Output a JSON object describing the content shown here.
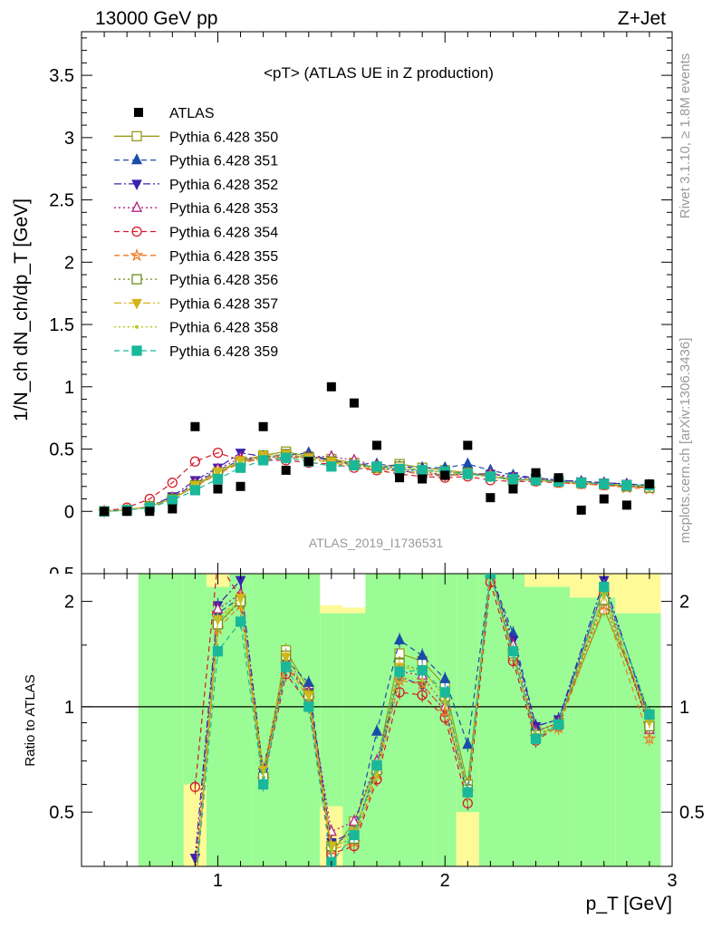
{
  "header": {
    "left": "13000 GeV pp",
    "right": "Z+Jet"
  },
  "side_labels": {
    "rivet": "Rivet 3.1.10, ≥ 1.8M events",
    "mcplots": "mcplots.cern.ch [arXiv:1306.3436]"
  },
  "chart_data": [
    {
      "type": "scatter",
      "title": "<pT> (ATLAS UE in Z production)",
      "analysis_label": "ATLAS_2019_I1736531",
      "ylabel": "1/N_ch dN_ch/dp_T [GeV]",
      "xlim": [
        0.4,
        3.0
      ],
      "ylim": [
        -0.5,
        3.85
      ],
      "yticks": [
        0,
        0.5,
        1,
        1.5,
        2,
        2.5,
        3,
        3.5
      ],
      "ytick_labels": [
        "0",
        "0.5",
        "1",
        "1.5",
        "2",
        "2.5",
        "3",
        "3.5"
      ],
      "legend_position": "top-left",
      "x": [
        0.5,
        0.6,
        0.7,
        0.8,
        0.9,
        1.0,
        1.1,
        1.2,
        1.3,
        1.4,
        1.5,
        1.6,
        1.7,
        1.8,
        1.9,
        2.0,
        2.1,
        2.2,
        2.3,
        2.4,
        2.5,
        2.6,
        2.7,
        2.8,
        2.9
      ],
      "data": {
        "name": "ATLAS",
        "color": "#000000",
        "values": [
          0.0,
          0.0,
          0.0,
          0.02,
          0.68,
          0.18,
          0.2,
          0.68,
          0.33,
          0.4,
          1.0,
          0.87,
          0.53,
          0.27,
          0.26,
          0.29,
          0.53,
          0.11,
          0.18,
          0.31,
          0.27,
          0.01,
          0.1,
          0.05,
          0.22
        ]
      },
      "series": [
        {
          "name": "Pythia 6.428 350",
          "color": "#9a9a1c",
          "marker": "open-square",
          "dash": "solid",
          "values": [
            0.0,
            0.01,
            0.04,
            0.1,
            0.2,
            0.31,
            0.4,
            0.45,
            0.48,
            0.44,
            0.42,
            0.39,
            0.35,
            0.38,
            0.35,
            0.33,
            0.31,
            0.28,
            0.25,
            0.26,
            0.24,
            0.23,
            0.22,
            0.2,
            0.2
          ]
        },
        {
          "name": "Pythia 6.428 351",
          "color": "#1a4da8",
          "marker": "filled-triangle-up",
          "dash": "dash",
          "values": [
            0.0,
            0.01,
            0.04,
            0.11,
            0.22,
            0.33,
            0.41,
            0.44,
            0.45,
            0.47,
            0.4,
            0.38,
            0.38,
            0.36,
            0.35,
            0.35,
            0.38,
            0.33,
            0.29,
            0.27,
            0.25,
            0.24,
            0.23,
            0.22,
            0.21
          ]
        },
        {
          "name": "Pythia 6.428 352",
          "color": "#3a22b0",
          "marker": "filled-triangle-down",
          "dash": "dashdot",
          "values": [
            0.0,
            0.01,
            0.04,
            0.12,
            0.25,
            0.35,
            0.47,
            0.44,
            0.43,
            0.44,
            0.41,
            0.38,
            0.35,
            0.33,
            0.3,
            0.29,
            0.3,
            0.3,
            0.28,
            0.27,
            0.25,
            0.24,
            0.23,
            0.22,
            0.2
          ]
        },
        {
          "name": "Pythia 6.428 353",
          "color": "#b02080",
          "marker": "open-triangle-up",
          "dash": "dot",
          "values": [
            0.0,
            0.01,
            0.04,
            0.11,
            0.23,
            0.34,
            0.43,
            0.43,
            0.44,
            0.44,
            0.44,
            0.41,
            0.37,
            0.34,
            0.32,
            0.29,
            0.3,
            0.3,
            0.27,
            0.26,
            0.24,
            0.23,
            0.22,
            0.21,
            0.19
          ]
        },
        {
          "name": "Pythia 6.428 354",
          "color": "#d41a2a",
          "marker": "open-circle",
          "dash": "dash",
          "values": [
            0.0,
            0.03,
            0.1,
            0.23,
            0.4,
            0.47,
            0.41,
            0.41,
            0.41,
            0.39,
            0.38,
            0.35,
            0.33,
            0.3,
            0.28,
            0.27,
            0.28,
            0.25,
            0.24,
            0.24,
            0.23,
            0.22,
            0.21,
            0.2,
            0.19
          ]
        },
        {
          "name": "Pythia 6.428 355",
          "color": "#ee7a22",
          "marker": "open-star",
          "dash": "dash",
          "values": [
            0.0,
            0.01,
            0.04,
            0.1,
            0.2,
            0.3,
            0.39,
            0.42,
            0.44,
            0.42,
            0.39,
            0.36,
            0.34,
            0.32,
            0.3,
            0.28,
            0.3,
            0.29,
            0.26,
            0.25,
            0.23,
            0.22,
            0.21,
            0.19,
            0.18
          ]
        },
        {
          "name": "Pythia 6.428 356",
          "color": "#6e8a1c",
          "marker": "open-square",
          "dash": "dot",
          "values": [
            0.0,
            0.01,
            0.04,
            0.1,
            0.21,
            0.31,
            0.4,
            0.43,
            0.46,
            0.43,
            0.4,
            0.37,
            0.35,
            0.36,
            0.33,
            0.31,
            0.31,
            0.28,
            0.25,
            0.25,
            0.24,
            0.23,
            0.22,
            0.2,
            0.19
          ]
        },
        {
          "name": "Pythia 6.428 357",
          "color": "#d4b41a",
          "marker": "tri-down",
          "dash": "dashdot",
          "values": [
            0.0,
            0.01,
            0.04,
            0.1,
            0.21,
            0.32,
            0.41,
            0.45,
            0.46,
            0.43,
            0.4,
            0.38,
            0.35,
            0.35,
            0.33,
            0.31,
            0.3,
            0.28,
            0.26,
            0.25,
            0.24,
            0.23,
            0.22,
            0.21,
            0.2
          ]
        },
        {
          "name": "Pythia 6.428 358",
          "color": "#b8c81c",
          "marker": "dot",
          "dash": "dot",
          "values": [
            0.0,
            0.01,
            0.04,
            0.1,
            0.21,
            0.32,
            0.4,
            0.43,
            0.44,
            0.42,
            0.39,
            0.37,
            0.34,
            0.33,
            0.31,
            0.3,
            0.29,
            0.28,
            0.26,
            0.25,
            0.24,
            0.23,
            0.22,
            0.21,
            0.2
          ]
        },
        {
          "name": "Pythia 6.428 359",
          "color": "#1ab89a",
          "marker": "filled-square",
          "dash": "dash",
          "values": [
            0.0,
            0.01,
            0.03,
            0.09,
            0.17,
            0.26,
            0.35,
            0.41,
            0.43,
            0.4,
            0.36,
            0.37,
            0.36,
            0.34,
            0.33,
            0.32,
            0.3,
            0.28,
            0.26,
            0.25,
            0.24,
            0.23,
            0.22,
            0.21,
            0.21
          ]
        }
      ]
    },
    {
      "type": "line",
      "ylabel": "Ratio to ATLAS",
      "xlabel": "p_T [GeV]",
      "xlim": [
        0.4,
        3.0
      ],
      "ylim": [
        0.35,
        2.4
      ],
      "y_scale": "log",
      "xticks": [
        1,
        2,
        3
      ],
      "xtick_labels": [
        "1",
        "2",
        "3"
      ],
      "yticks": [
        0.5,
        1,
        2
      ],
      "ytick_labels": [
        "0.5",
        "1",
        "2"
      ],
      "reference_line": 1,
      "band_colors": {
        "inner": "#9bfc95",
        "outer": "#fffa98"
      },
      "band_bins": [
        {
          "x0": 0.65,
          "x1": 0.85,
          "lo1": 0.35,
          "hi1": 2.4,
          "lo2": 0.35,
          "hi2": 2.4
        },
        {
          "x0": 0.85,
          "x1": 0.95,
          "lo1": 0.6,
          "hi1": 2.4,
          "lo2": 0.35,
          "hi2": 2.4
        },
        {
          "x0": 0.95,
          "x1": 1.05,
          "lo1": 0.35,
          "hi1": 2.2,
          "lo2": 0.35,
          "hi2": 2.4
        },
        {
          "x0": 1.05,
          "x1": 1.15,
          "lo1": 0.35,
          "hi1": 2.4,
          "lo2": 0.35,
          "hi2": 2.4
        },
        {
          "x0": 1.15,
          "x1": 1.45,
          "lo1": 0.35,
          "hi1": 2.4,
          "lo2": 0.35,
          "hi2": 2.4
        },
        {
          "x0": 1.45,
          "x1": 1.55,
          "lo1": 0.52,
          "hi1": 1.85,
          "lo2": 0.35,
          "hi2": 1.95
        },
        {
          "x0": 1.55,
          "x1": 1.65,
          "lo1": 0.35,
          "hi1": 1.85,
          "lo2": 0.35,
          "hi2": 1.92
        },
        {
          "x0": 1.65,
          "x1": 1.95,
          "lo1": 0.35,
          "hi1": 2.4,
          "lo2": 0.35,
          "hi2": 2.4
        },
        {
          "x0": 1.95,
          "x1": 2.05,
          "lo1": 0.35,
          "hi1": 2.4,
          "lo2": 0.35,
          "hi2": 2.4
        },
        {
          "x0": 2.05,
          "x1": 2.15,
          "lo1": 0.5,
          "hi1": 2.4,
          "lo2": 0.35,
          "hi2": 2.4
        },
        {
          "x0": 2.15,
          "x1": 2.35,
          "lo1": 0.35,
          "hi1": 2.4,
          "lo2": 0.35,
          "hi2": 2.4
        },
        {
          "x0": 2.35,
          "x1": 2.55,
          "lo1": 0.35,
          "hi1": 2.2,
          "lo2": 0.35,
          "hi2": 2.4
        },
        {
          "x0": 2.55,
          "x1": 2.75,
          "lo1": 0.35,
          "hi1": 2.05,
          "lo2": 0.35,
          "hi2": 2.4
        },
        {
          "x0": 2.75,
          "x1": 2.95,
          "lo1": 0.35,
          "hi1": 1.85,
          "lo2": 0.35,
          "hi2": 2.4
        }
      ],
      "x": [
        0.9,
        1.0,
        1.1,
        1.2,
        1.3,
        1.4,
        1.5,
        1.6,
        1.7,
        1.8,
        1.9,
        2.0,
        2.1,
        2.2,
        2.3,
        2.4,
        2.5,
        2.7,
        2.9
      ],
      "ratios": [
        {
          "name": "Pythia 6.428 350",
          "values": [
            0.3,
            1.72,
            2.02,
            0.62,
            1.45,
            1.12,
            0.38,
            0.47,
            0.68,
            1.42,
            1.35,
            1.15,
            0.6,
            2.4,
            1.4,
            0.85,
            0.9,
            1.9,
            0.95
          ]
        },
        {
          "name": "Pythia 6.428 351",
          "values": [
            0.32,
            1.85,
            2.05,
            0.66,
            1.36,
            1.17,
            0.4,
            0.44,
            0.85,
            1.55,
            1.4,
            1.2,
            0.78,
            2.4,
            1.62,
            0.88,
            0.92,
            2.2,
            0.95
          ]
        },
        {
          "name": "Pythia 6.428 352",
          "values": [
            0.37,
            1.95,
            2.3,
            0.65,
            1.3,
            1.1,
            0.41,
            0.44,
            0.66,
            1.22,
            1.15,
            0.98,
            0.56,
            2.4,
            1.55,
            0.88,
            0.92,
            2.3,
            0.91
          ]
        },
        {
          "name": "Pythia 6.428 353",
          "values": [
            0.34,
            1.9,
            2.1,
            0.64,
            1.33,
            1.1,
            0.44,
            0.47,
            0.7,
            1.26,
            1.23,
            1.0,
            0.57,
            2.4,
            1.5,
            0.85,
            0.9,
            2.2,
            0.86
          ]
        },
        {
          "name": "Pythia 6.428 354",
          "values": [
            0.59,
            2.6,
            2.05,
            0.61,
            1.24,
            1.02,
            0.38,
            0.4,
            0.62,
            1.1,
            1.08,
            0.93,
            0.53,
            2.27,
            1.35,
            0.8,
            0.88,
            2.1,
            0.88
          ]
        },
        {
          "name": "Pythia 6.428 355",
          "values": [
            0.3,
            1.67,
            1.95,
            0.62,
            1.33,
            1.05,
            0.39,
            0.41,
            0.64,
            1.19,
            1.16,
            0.97,
            0.57,
            2.4,
            1.44,
            0.82,
            0.87,
            1.95,
            0.81
          ]
        },
        {
          "name": "Pythia 6.428 356",
          "values": [
            0.31,
            1.72,
            2.0,
            0.63,
            1.4,
            1.08,
            0.4,
            0.42,
            0.66,
            1.33,
            1.27,
            1.07,
            0.58,
            2.4,
            1.42,
            0.83,
            0.89,
            2.02,
            0.88
          ]
        },
        {
          "name": "Pythia 6.428 357",
          "values": [
            0.31,
            1.78,
            2.05,
            0.66,
            1.39,
            1.08,
            0.4,
            0.44,
            0.66,
            1.3,
            1.27,
            1.07,
            0.57,
            2.4,
            1.44,
            0.82,
            0.89,
            2.1,
            0.91
          ]
        },
        {
          "name": "Pythia 6.428 358",
          "values": [
            0.31,
            1.78,
            2.0,
            0.63,
            1.33,
            1.05,
            0.39,
            0.43,
            0.64,
            1.22,
            1.19,
            1.03,
            0.55,
            2.4,
            1.44,
            0.81,
            0.89,
            2.1,
            0.91
          ]
        },
        {
          "name": "Pythia 6.428 359",
          "values": [
            0.25,
            1.44,
            1.75,
            0.6,
            1.3,
            1.0,
            0.36,
            0.43,
            0.68,
            1.26,
            1.27,
            1.1,
            0.57,
            2.4,
            1.44,
            0.81,
            0.89,
            2.2,
            0.95
          ]
        }
      ]
    }
  ]
}
